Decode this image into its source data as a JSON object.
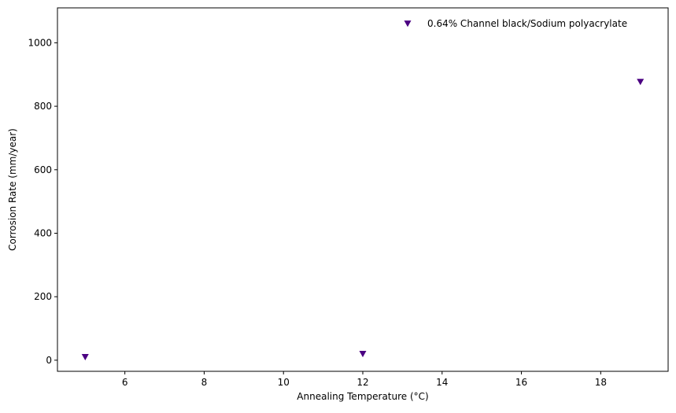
{
  "chart_data": {
    "type": "scatter",
    "title": "",
    "xlabel": "Annealing Temperature (°C)",
    "ylabel": "Corrosion Rate (mm/year)",
    "xlim": [
      4.3,
      19.7
    ],
    "ylim": [
      -35,
      1110
    ],
    "xticks": [
      6,
      8,
      10,
      12,
      14,
      16,
      18
    ],
    "yticks": [
      0,
      200,
      400,
      600,
      800,
      1000
    ],
    "grid": false,
    "legend_position": "top-right",
    "series": [
      {
        "name": "0.64% Channel black/Sodium polyacrylate",
        "marker": "triangle-down",
        "color": "#4b0082",
        "points": [
          {
            "x": 5,
            "y": 10
          },
          {
            "x": 12,
            "y": 20
          },
          {
            "x": 19,
            "y": 877
          }
        ]
      }
    ]
  }
}
